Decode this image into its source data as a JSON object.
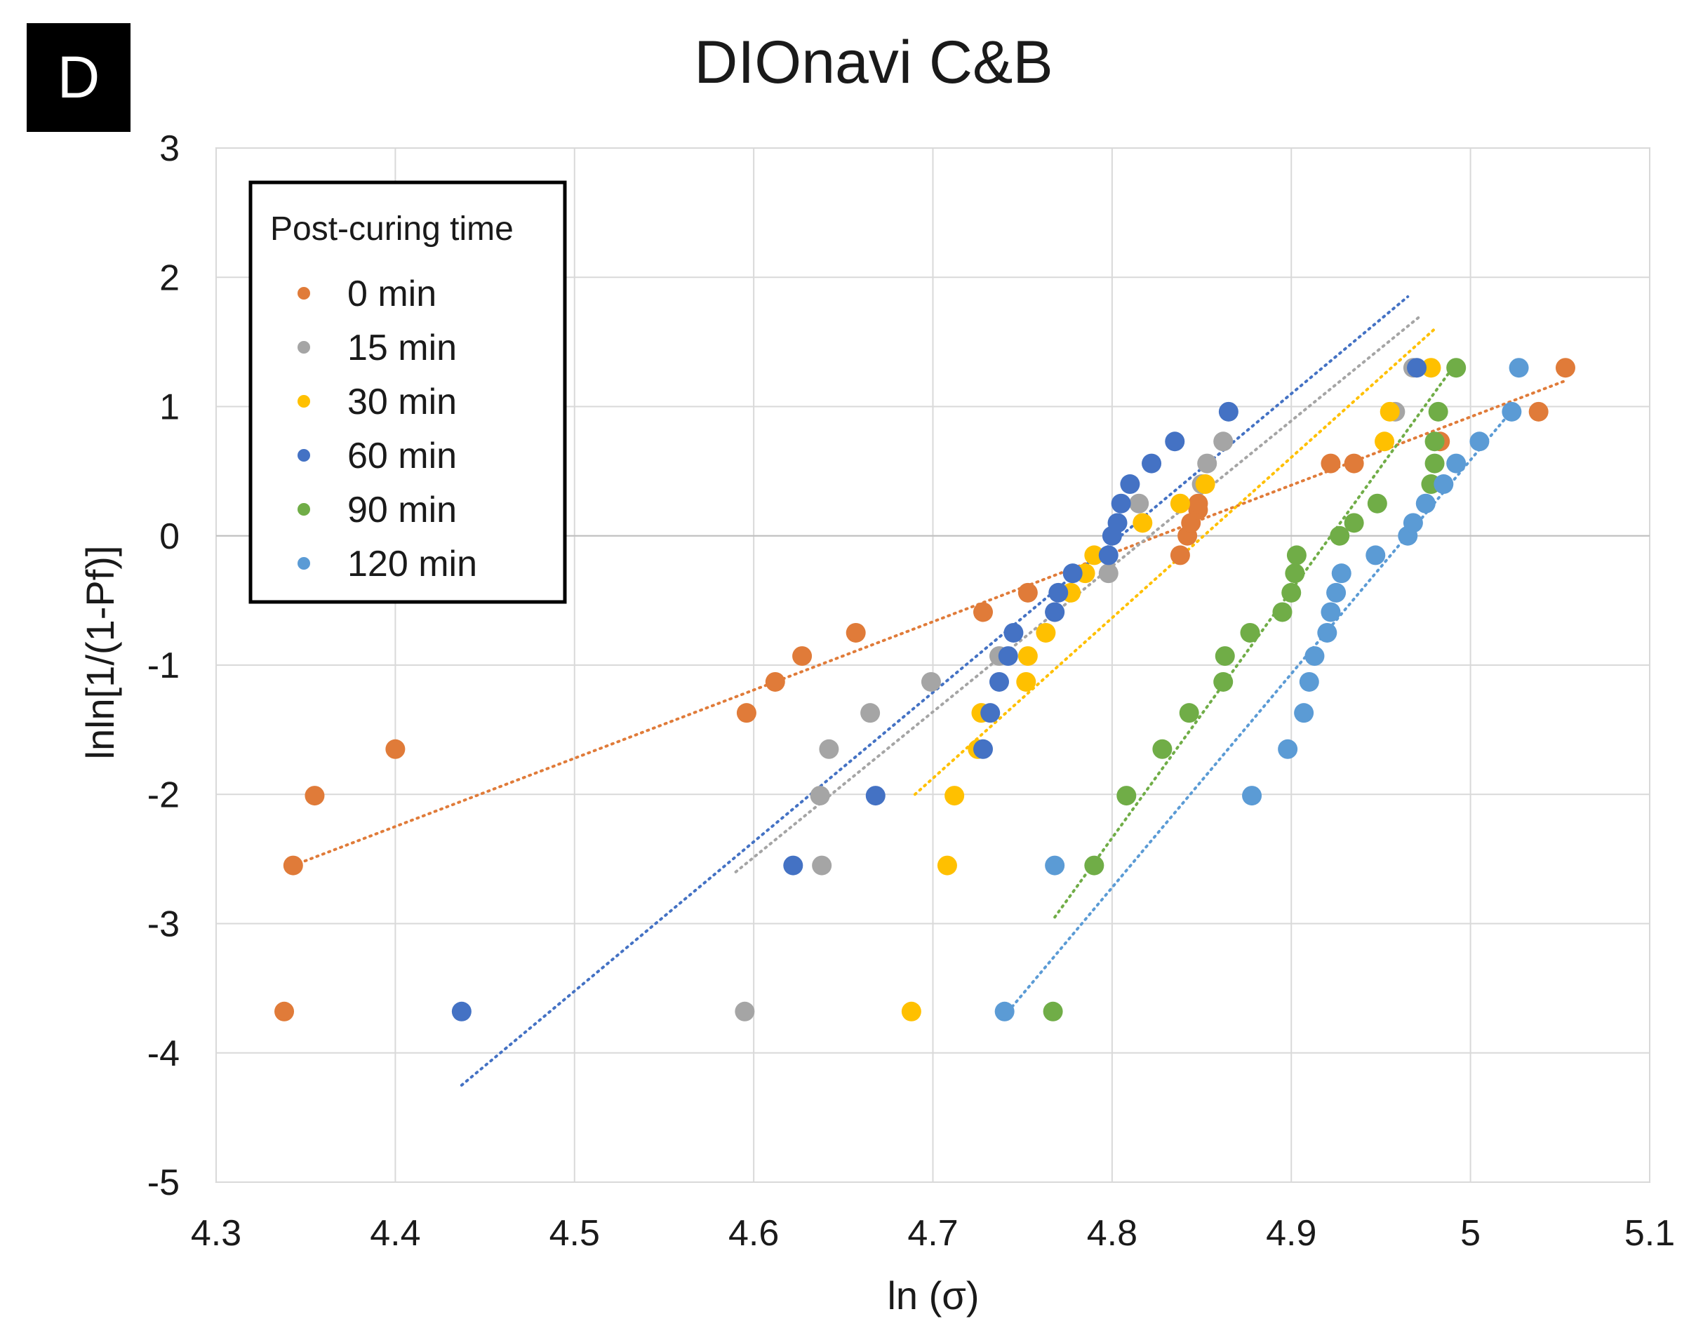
{
  "panel_label": "D",
  "chart_data": {
    "type": "scatter",
    "title": "DIOnavi C&B",
    "xlabel": "ln (σ)",
    "ylabel": "lnln[1/(1-Pf)]",
    "xlim": [
      4.3,
      5.1
    ],
    "ylim": [
      -5,
      3
    ],
    "xticks": [
      "4.3",
      "4.4",
      "4.5",
      "4.6",
      "4.7",
      "4.8",
      "4.9",
      "5",
      "5.1"
    ],
    "yticks": [
      "3",
      "2",
      "1",
      "0",
      "-1",
      "-2",
      "-3",
      "-4",
      "-5"
    ],
    "grid": true,
    "legend": {
      "title": "Post-curing time",
      "position": "top-left"
    },
    "series": [
      {
        "name": "0 min",
        "color": "#E07B39",
        "points": [
          [
            4.338,
            -3.68
          ],
          [
            4.343,
            -2.55
          ],
          [
            4.355,
            -2.01
          ],
          [
            4.4,
            -1.65
          ],
          [
            4.596,
            -1.37
          ],
          [
            4.612,
            -1.13
          ],
          [
            4.627,
            -0.93
          ],
          [
            4.657,
            -0.75
          ],
          [
            4.728,
            -0.59
          ],
          [
            4.753,
            -0.44
          ],
          [
            4.838,
            -0.15
          ],
          [
            4.842,
            0.0
          ],
          [
            4.844,
            0.1
          ],
          [
            4.848,
            0.2
          ],
          [
            4.848,
            0.25
          ],
          [
            4.922,
            0.56
          ],
          [
            4.935,
            0.56
          ],
          [
            4.983,
            0.73
          ],
          [
            5.038,
            0.96
          ],
          [
            5.053,
            1.3
          ]
        ],
        "trend": [
          [
            4.343,
            -2.55
          ],
          [
            5.053,
            1.2
          ]
        ]
      },
      {
        "name": "15 min",
        "color": "#A5A5A5",
        "points": [
          [
            4.595,
            -3.68
          ],
          [
            4.638,
            -2.55
          ],
          [
            4.637,
            -2.01
          ],
          [
            4.642,
            -1.65
          ],
          [
            4.665,
            -1.37
          ],
          [
            4.699,
            -1.13
          ],
          [
            4.737,
            -0.93
          ],
          [
            4.768,
            -0.59
          ],
          [
            4.798,
            -0.29
          ],
          [
            4.815,
            0.25
          ],
          [
            4.85,
            0.4
          ],
          [
            4.853,
            0.56
          ],
          [
            4.862,
            0.73
          ],
          [
            4.958,
            0.96
          ],
          [
            4.968,
            1.3
          ]
        ],
        "trend": [
          [
            4.59,
            -2.6
          ],
          [
            4.972,
            1.7
          ]
        ]
      },
      {
        "name": "30 min",
        "color": "#FFC000",
        "points": [
          [
            4.688,
            -3.68
          ],
          [
            4.708,
            -2.55
          ],
          [
            4.712,
            -2.01
          ],
          [
            4.725,
            -1.65
          ],
          [
            4.727,
            -1.37
          ],
          [
            4.752,
            -1.13
          ],
          [
            4.753,
            -0.93
          ],
          [
            4.763,
            -0.75
          ],
          [
            4.777,
            -0.44
          ],
          [
            4.785,
            -0.29
          ],
          [
            4.79,
            -0.15
          ],
          [
            4.817,
            0.1
          ],
          [
            4.838,
            0.25
          ],
          [
            4.852,
            0.4
          ],
          [
            4.952,
            0.73
          ],
          [
            4.955,
            0.96
          ],
          [
            4.978,
            1.3
          ]
        ],
        "trend": [
          [
            4.69,
            -2.0
          ],
          [
            4.98,
            1.6
          ]
        ]
      },
      {
        "name": "60 min",
        "color": "#4472C4",
        "points": [
          [
            4.437,
            -3.68
          ],
          [
            4.622,
            -2.55
          ],
          [
            4.668,
            -2.01
          ],
          [
            4.728,
            -1.65
          ],
          [
            4.732,
            -1.37
          ],
          [
            4.737,
            -1.13
          ],
          [
            4.742,
            -0.93
          ],
          [
            4.745,
            -0.75
          ],
          [
            4.768,
            -0.59
          ],
          [
            4.77,
            -0.44
          ],
          [
            4.778,
            -0.29
          ],
          [
            4.798,
            -0.15
          ],
          [
            4.8,
            0.0
          ],
          [
            4.803,
            0.1
          ],
          [
            4.805,
            0.25
          ],
          [
            4.81,
            0.4
          ],
          [
            4.822,
            0.56
          ],
          [
            4.835,
            0.73
          ],
          [
            4.865,
            0.96
          ],
          [
            4.97,
            1.3
          ]
        ],
        "trend": [
          [
            4.437,
            -4.25
          ],
          [
            4.965,
            1.85
          ]
        ]
      },
      {
        "name": "90 min",
        "color": "#70AD47",
        "points": [
          [
            4.767,
            -3.68
          ],
          [
            4.79,
            -2.55
          ],
          [
            4.808,
            -2.01
          ],
          [
            4.828,
            -1.65
          ],
          [
            4.843,
            -1.37
          ],
          [
            4.862,
            -1.13
          ],
          [
            4.863,
            -0.93
          ],
          [
            4.877,
            -0.75
          ],
          [
            4.895,
            -0.59
          ],
          [
            4.9,
            -0.44
          ],
          [
            4.902,
            -0.29
          ],
          [
            4.903,
            -0.15
          ],
          [
            4.927,
            0.0
          ],
          [
            4.935,
            0.1
          ],
          [
            4.948,
            0.25
          ],
          [
            4.978,
            0.4
          ],
          [
            4.98,
            0.56
          ],
          [
            4.98,
            0.73
          ],
          [
            4.982,
            0.96
          ],
          [
            4.992,
            1.3
          ]
        ],
        "trend": [
          [
            4.768,
            -2.95
          ],
          [
            4.99,
            1.3
          ]
        ]
      },
      {
        "name": "120 min",
        "color": "#5B9BD5",
        "points": [
          [
            4.74,
            -3.68
          ],
          [
            4.768,
            -2.55
          ],
          [
            4.878,
            -2.01
          ],
          [
            4.898,
            -1.65
          ],
          [
            4.907,
            -1.37
          ],
          [
            4.91,
            -1.13
          ],
          [
            4.913,
            -0.93
          ],
          [
            4.92,
            -0.75
          ],
          [
            4.922,
            -0.59
          ],
          [
            4.925,
            -0.44
          ],
          [
            4.928,
            -0.29
          ],
          [
            4.947,
            -0.15
          ],
          [
            4.965,
            0.0
          ],
          [
            4.968,
            0.1
          ],
          [
            4.975,
            0.25
          ],
          [
            4.985,
            0.4
          ],
          [
            4.992,
            0.56
          ],
          [
            5.005,
            0.73
          ],
          [
            5.023,
            0.96
          ],
          [
            5.027,
            1.3
          ]
        ],
        "trend": [
          [
            4.742,
            -3.68
          ],
          [
            5.025,
            1.0
          ]
        ]
      }
    ]
  }
}
